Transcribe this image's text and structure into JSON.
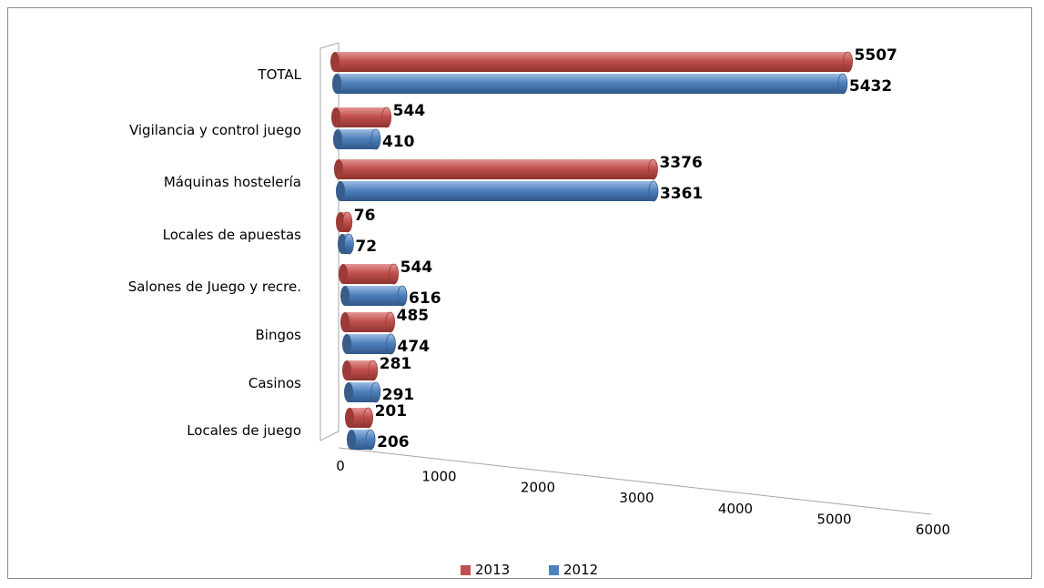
{
  "chart_data": {
    "type": "bar",
    "orientation": "horizontal",
    "style": "3d-cylinder",
    "categories": [
      "TOTAL",
      "Vigilancia y control juego",
      "Máquinas hostelería",
      "Locales de apuestas",
      "Salones de Juego y recre.",
      "Bingos",
      "Casinos",
      "Locales de juego"
    ],
    "series": [
      {
        "name": "2013",
        "color": "#c0504d",
        "values": [
          5507,
          544,
          3376,
          76,
          544,
          485,
          281,
          201
        ]
      },
      {
        "name": "2012",
        "color": "#4f81bd",
        "values": [
          5432,
          410,
          3361,
          72,
          616,
          474,
          291,
          206
        ]
      }
    ],
    "x_ticks": [
      "0",
      "1000",
      "2000",
      "3000",
      "4000",
      "5000",
      "6000"
    ],
    "xlim": [
      0,
      6000
    ],
    "legend_position": "bottom",
    "grid": false
  }
}
